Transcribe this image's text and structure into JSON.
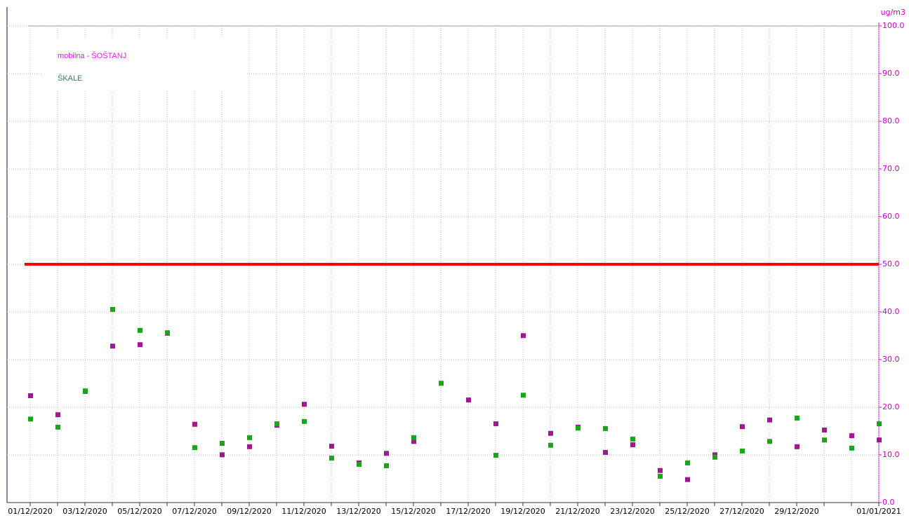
{
  "chart_data": {
    "type": "scatter",
    "y_axis_label": "ug/m3",
    "categories": [
      "01/12/2020",
      null,
      "03/12/2020",
      null,
      "05/12/2020",
      null,
      "07/12/2020",
      null,
      "09/12/2020",
      null,
      "11/12/2020",
      null,
      "13/12/2020",
      null,
      "15/12/2020",
      null,
      "17/12/2020",
      null,
      "19/12/2020",
      null,
      "21/12/2020",
      null,
      "23/12/2020",
      null,
      "25/12/2020",
      null,
      "27/12/2020",
      null,
      "29/12/2020",
      null,
      null,
      "01/01/2021"
    ],
    "series": [
      {
        "name": "mobilna - ŠOŠTANJ",
        "color": "#a01890",
        "label_color": "#e61ee6",
        "values": [
          22.5,
          18.5,
          23.4,
          32.9,
          33.2,
          35.6,
          16.5,
          10.1,
          11.8,
          16.3,
          20.7,
          11.9,
          8.4,
          10.4,
          12.9,
          null,
          21.6,
          16.6,
          35.1,
          14.6,
          15.9,
          10.6,
          12.2,
          6.8,
          4.9,
          10.1,
          16.0,
          17.4,
          11.8,
          15.3,
          14.1,
          13.2
        ]
      },
      {
        "name": "ŠKALE",
        "color": "#1aa51a",
        "label_color": "#2e8b57",
        "values": [
          17.6,
          15.9,
          23.5,
          40.6,
          36.2,
          35.7,
          11.6,
          12.5,
          13.7,
          16.6,
          17.1,
          9.4,
          8.1,
          7.8,
          13.7,
          25.1,
          null,
          10.0,
          22.6,
          12.1,
          15.7,
          15.6,
          13.4,
          5.6,
          8.4,
          9.6,
          10.9,
          12.9,
          17.8,
          13.2,
          11.5,
          16.6
        ]
      }
    ],
    "ylim": [
      0,
      100
    ],
    "yticks": [
      {
        "value": 0,
        "label": "0.0"
      },
      {
        "value": 10,
        "label": "10.0"
      },
      {
        "value": 20,
        "label": "20.0"
      },
      {
        "value": 30,
        "label": "30.0"
      },
      {
        "value": 40,
        "label": "40.0"
      },
      {
        "value": 50,
        "label": "50.0"
      },
      {
        "value": 60,
        "label": "60.0"
      },
      {
        "value": 70,
        "label": "70.0"
      },
      {
        "value": 80,
        "label": "80.0"
      },
      {
        "value": 90,
        "label": "90.0"
      },
      {
        "value": 100,
        "label": "100.0"
      }
    ],
    "axis_color": "#cc00cc",
    "threshold": 50,
    "threshold_color": "#ff0000",
    "grid": true
  }
}
